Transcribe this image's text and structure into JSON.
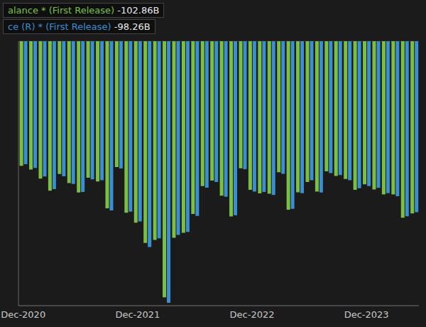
{
  "chart_data": {
    "type": "bar",
    "categories": [
      "Dec-2020",
      null,
      null,
      null,
      null,
      null,
      null,
      null,
      null,
      null,
      null,
      null,
      "Dec-2021",
      null,
      null,
      null,
      null,
      null,
      null,
      null,
      null,
      null,
      null,
      null,
      "Dec-2022",
      null,
      null,
      null,
      null,
      null,
      null,
      null,
      null,
      null,
      null,
      null,
      "Dec-2023",
      null,
      null,
      null,
      null,
      null
    ],
    "series": [
      {
        "name": "alance * (First Release)",
        "color": "#7bc043",
        "values": [
          -82.5,
          -83.7,
          -86.7,
          -90.6,
          -85.2,
          -88.1,
          -91.2,
          -86.4,
          -87.6,
          -96.3,
          -82.9,
          -97.8,
          -101.0,
          -107.6,
          -106.6,
          -125.3,
          -105.9,
          -104.3,
          -98.2,
          -89.1,
          -87.3,
          -92.2,
          -99.0,
          -83.3,
          -90.3,
          -91.5,
          -91.6,
          -84.6,
          -96.8,
          -91.1,
          -87.8,
          -90.9,
          -84.3,
          -85.8,
          -86.8,
          -90.3,
          -88.5,
          -90.2,
          -91.8,
          -91.8,
          -99.4,
          -98.0
        ]
      },
      {
        "name": "ce (R) * (First Release)",
        "color": "#3b8ed0",
        "values": [
          -82.0,
          -83.2,
          -86.0,
          -90.1,
          -85.9,
          -88.4,
          -91.0,
          -86.9,
          -87.2,
          -97.0,
          -83.4,
          -97.4,
          -100.6,
          -108.9,
          -106.1,
          -127.1,
          -105.0,
          -104.0,
          -98.8,
          -89.6,
          -87.8,
          -92.6,
          -98.6,
          -83.6,
          -90.9,
          -91.0,
          -92.0,
          -85.1,
          -96.5,
          -91.4,
          -87.2,
          -91.2,
          -84.9,
          -85.5,
          -87.2,
          -89.8,
          -89.1,
          -89.7,
          -91.4,
          -92.4,
          -98.9,
          -97.6
        ]
      }
    ],
    "annotations": [
      "-102.86B",
      "-98.26B"
    ],
    "ylim": [
      -128,
      -42
    ],
    "yticks": [
      -120,
      -110,
      -100,
      -90,
      -80,
      -70,
      -60,
      -50
    ],
    "grid": true,
    "tick_labels": "x"
  }
}
